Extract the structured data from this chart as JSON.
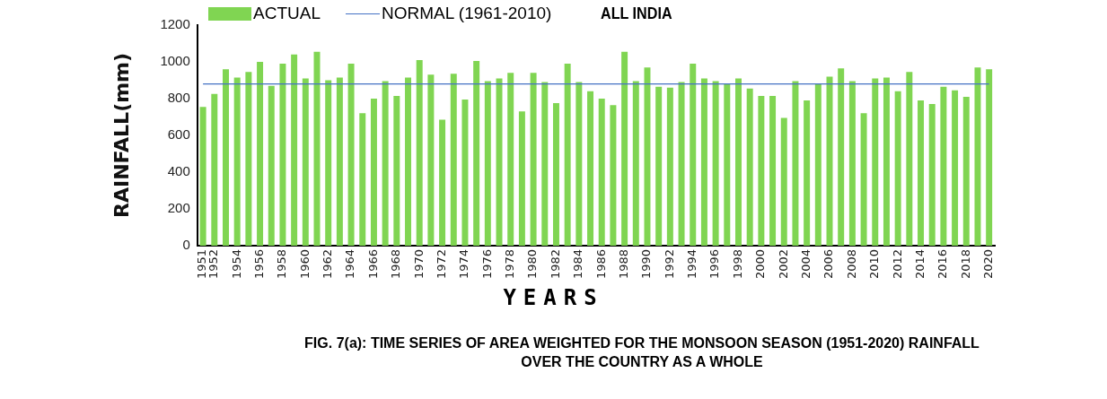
{
  "chart_data": {
    "type": "bar",
    "title": "ALL INDIA",
    "xlabel": "YEARS",
    "ylabel": "RAINFALL(mm)",
    "annotations": [
      "FIG. 7(a): TIME SERIES OF AREA WEIGHTED FOR THE MONSOON SEASON (1951-2020) RAINFALL OVER THE COUNTRY AS A WHOLE"
    ],
    "categories": [
      "1951",
      "1952",
      null,
      "1954",
      null,
      "1956",
      null,
      "1958",
      null,
      "1960",
      null,
      "1962",
      null,
      "1964",
      null,
      "1966",
      null,
      "1968",
      null,
      "1970",
      null,
      "1972",
      null,
      "1974",
      null,
      "1976",
      null,
      "1978",
      null,
      "1980",
      null,
      "1982",
      null,
      "1984",
      null,
      "1986",
      null,
      "1988",
      null,
      "1990",
      null,
      "1992",
      null,
      "1994",
      null,
      "1996",
      null,
      "1998",
      null,
      "2000",
      null,
      "2002",
      null,
      "2004",
      null,
      "2006",
      null,
      "2008",
      null,
      "2010",
      null,
      "2012",
      null,
      "2014",
      null,
      "2016",
      null,
      "2018",
      null,
      "2020"
    ],
    "series": [
      {
        "name": "ACTUAL",
        "color": "#80d552",
        "values": [
          755,
          825,
          960,
          915,
          945,
          1000,
          870,
          990,
          1040,
          910,
          1055,
          900,
          915,
          990,
          720,
          800,
          895,
          815,
          915,
          1010,
          930,
          685,
          935,
          795,
          1005,
          895,
          910,
          940,
          730,
          940,
          890,
          775,
          990,
          890,
          840,
          800,
          765,
          1055,
          895,
          970,
          865,
          860,
          890,
          990,
          910,
          895,
          880,
          910,
          855,
          815,
          815,
          695,
          895,
          790,
          880,
          920,
          965,
          895,
          720,
          910,
          915,
          840,
          945,
          790,
          770,
          865,
          845,
          810,
          970,
          960
        ]
      },
      {
        "type": "line",
        "name": "NORMAL (1961-2010)",
        "color": "#4472c4",
        "marker": "none",
        "line_style": "solid",
        "values": [
          880,
          880,
          880,
          880,
          880,
          880,
          880,
          880,
          880,
          880,
          880,
          880,
          880,
          880,
          880,
          880,
          880,
          880,
          880,
          880,
          880,
          880,
          880,
          880,
          880,
          880,
          880,
          880,
          880,
          880,
          880,
          880,
          880,
          880,
          880,
          880,
          880,
          880,
          880,
          880,
          880,
          880,
          880,
          880,
          880,
          880,
          880,
          880,
          880,
          880,
          880,
          880,
          880,
          880,
          880,
          880,
          880,
          880,
          880,
          880,
          880,
          880,
          880,
          880,
          880,
          880,
          880,
          880,
          880,
          880
        ]
      }
    ],
    "ylim": [
      0,
      1200
    ],
    "yticks": [
      0,
      200,
      400,
      600,
      800,
      1000,
      1200
    ],
    "grid": false,
    "legend": "top left"
  }
}
